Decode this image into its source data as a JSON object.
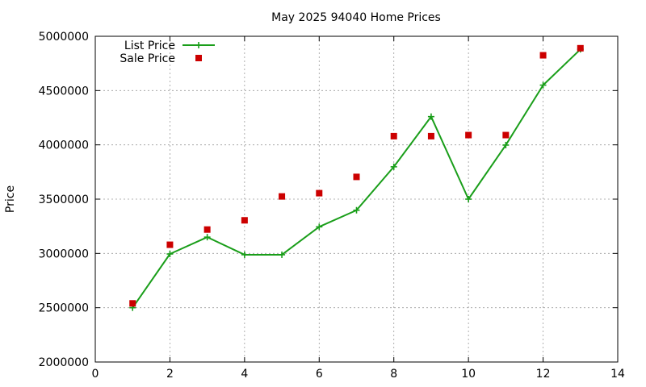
{
  "chart_data": {
    "type": "line",
    "title": "May 2025 94040 Home Prices",
    "xlabel": "",
    "ylabel": "Price",
    "xlim": [
      0,
      14
    ],
    "ylim": [
      2000000,
      5000000
    ],
    "xticks": [
      0,
      2,
      4,
      6,
      8,
      10,
      12,
      14
    ],
    "yticks": [
      2000000,
      2500000,
      3000000,
      3500000,
      4000000,
      4500000,
      5000000
    ],
    "xtick_labels": [
      "0",
      "2",
      "4",
      "6",
      "8",
      "10",
      "12",
      "14"
    ],
    "ytick_labels": [
      "2000000",
      "2500000",
      "3000000",
      "3500000",
      "4000000",
      "4500000",
      "5000000"
    ],
    "grid": true,
    "legend_position": "top-left",
    "series": [
      {
        "name": "List Price",
        "style": "line-with-plus-markers",
        "color": "#1a9e1a",
        "x": [
          1,
          2,
          3,
          4,
          5,
          6,
          7,
          8,
          9,
          10,
          11,
          12,
          13
        ],
        "y": [
          2500000,
          2995000,
          3150000,
          2988000,
          2988000,
          3245000,
          3398000,
          3798000,
          4260000,
          3500000,
          3998000,
          4550000,
          4880000
        ]
      },
      {
        "name": "Sale Price",
        "style": "square-markers",
        "color": "#cc0000",
        "x": [
          1,
          2,
          3,
          4,
          5,
          6,
          7,
          8,
          9,
          10,
          11,
          12,
          13
        ],
        "y": [
          2540000,
          3080000,
          3220000,
          3305000,
          3525000,
          3555000,
          3705000,
          4080000,
          4080000,
          4090000,
          4090000,
          4825000,
          4890000
        ]
      }
    ]
  }
}
